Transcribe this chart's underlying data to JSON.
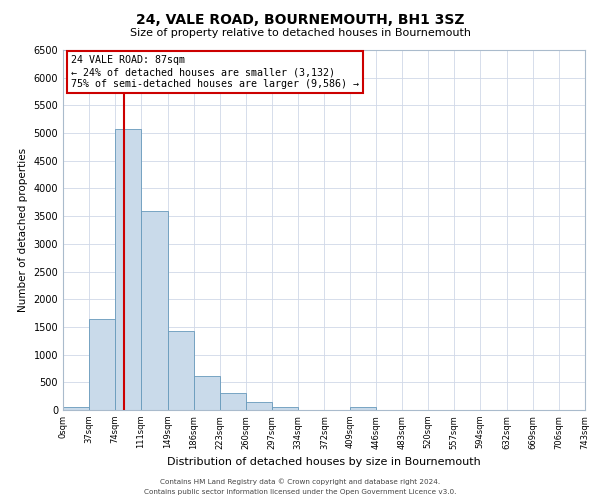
{
  "title": "24, VALE ROAD, BOURNEMOUTH, BH1 3SZ",
  "subtitle": "Size of property relative to detached houses in Bournemouth",
  "xlabel": "Distribution of detached houses by size in Bournemouth",
  "ylabel": "Number of detached properties",
  "bar_color": "#c9daea",
  "bar_edge_color": "#6699bb",
  "vline_color": "#cc0000",
  "vline_x": 87,
  "annotation_title": "24 VALE ROAD: 87sqm",
  "annotation_line1": "← 24% of detached houses are smaller (3,132)",
  "annotation_line2": "75% of semi-detached houses are larger (9,586) →",
  "bin_edges": [
    0,
    37,
    74,
    111,
    149,
    186,
    223,
    260,
    297,
    334,
    372,
    409,
    446,
    483,
    520,
    557,
    594,
    632,
    669,
    706,
    743
  ],
  "bin_heights": [
    50,
    1650,
    5080,
    3600,
    1420,
    610,
    300,
    145,
    60,
    0,
    0,
    50,
    0,
    0,
    0,
    0,
    0,
    0,
    0,
    0
  ],
  "ylim": [
    0,
    6500
  ],
  "yticks": [
    0,
    500,
    1000,
    1500,
    2000,
    2500,
    3000,
    3500,
    4000,
    4500,
    5000,
    5500,
    6000,
    6500
  ],
  "xlim": [
    0,
    743
  ],
  "footer1": "Contains HM Land Registry data © Crown copyright and database right 2024.",
  "footer2": "Contains public sector information licensed under the Open Government Licence v3.0.",
  "background_color": "#ffffff",
  "grid_color": "#d0d8e8"
}
